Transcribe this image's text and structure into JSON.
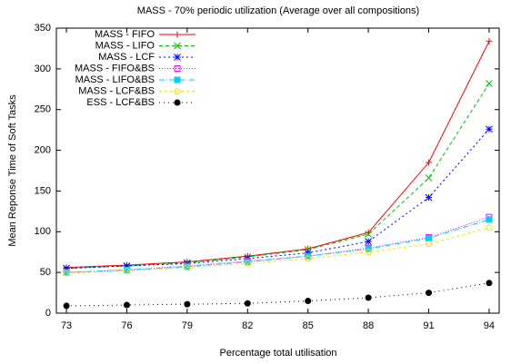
{
  "chart_data": {
    "type": "line",
    "title": "MASS - 70% periodic utilization (Average over all compositions)",
    "xlabel": "Percentage total utilisation",
    "ylabel": "Mean Reponse Time of Soft Tasks",
    "x": [
      73,
      76,
      79,
      82,
      85,
      88,
      91,
      94
    ],
    "xlim": [
      72.5,
      94.5
    ],
    "xticks": [
      73,
      76,
      79,
      82,
      85,
      88,
      91,
      94
    ],
    "ylim": [
      0,
      350
    ],
    "yticks": [
      0,
      50,
      100,
      150,
      200,
      250,
      300,
      350
    ],
    "legend": "top-left",
    "series": [
      {
        "name": "MASS - FIFO",
        "color": "#ff0000",
        "dash": "none",
        "marker": "plus",
        "values": [
          56,
          59,
          63,
          70,
          79,
          99,
          185,
          334
        ]
      },
      {
        "name": "MASS - LIFO",
        "color": "#00c000",
        "dash": "4,3",
        "marker": "cross",
        "values": [
          55,
          58,
          62,
          69,
          78,
          97,
          166,
          282
        ]
      },
      {
        "name": "MASS - LCF",
        "color": "#0000ff",
        "dash": "2,3",
        "marker": "star",
        "values": [
          55,
          58,
          61,
          67,
          74,
          88,
          142,
          226
        ]
      },
      {
        "name": "MASS - FIFO&BS",
        "color": "#ff00ff",
        "dash": "1,2",
        "marker": "square",
        "values": [
          50,
          53,
          58,
          64,
          70,
          80,
          93,
          118
        ]
      },
      {
        "name": "MASS - LIFO&BS",
        "color": "#00d0ff",
        "dash": "6,2,1,2",
        "marker": "filled-square",
        "values": [
          50,
          53,
          57,
          63,
          70,
          79,
          92,
          115
        ]
      },
      {
        "name": "MASS - LCF&BS",
        "color": "#ffe000",
        "dash": "3,3",
        "marker": "circle",
        "values": [
          49,
          52,
          56,
          61,
          67,
          75,
          85,
          105
        ]
      },
      {
        "name": "ESS - LCF&BS",
        "color": "#000000",
        "dash": "1,4",
        "marker": "filled-circle",
        "values": [
          9,
          10,
          11,
          12,
          15,
          19,
          25,
          37
        ]
      }
    ]
  }
}
